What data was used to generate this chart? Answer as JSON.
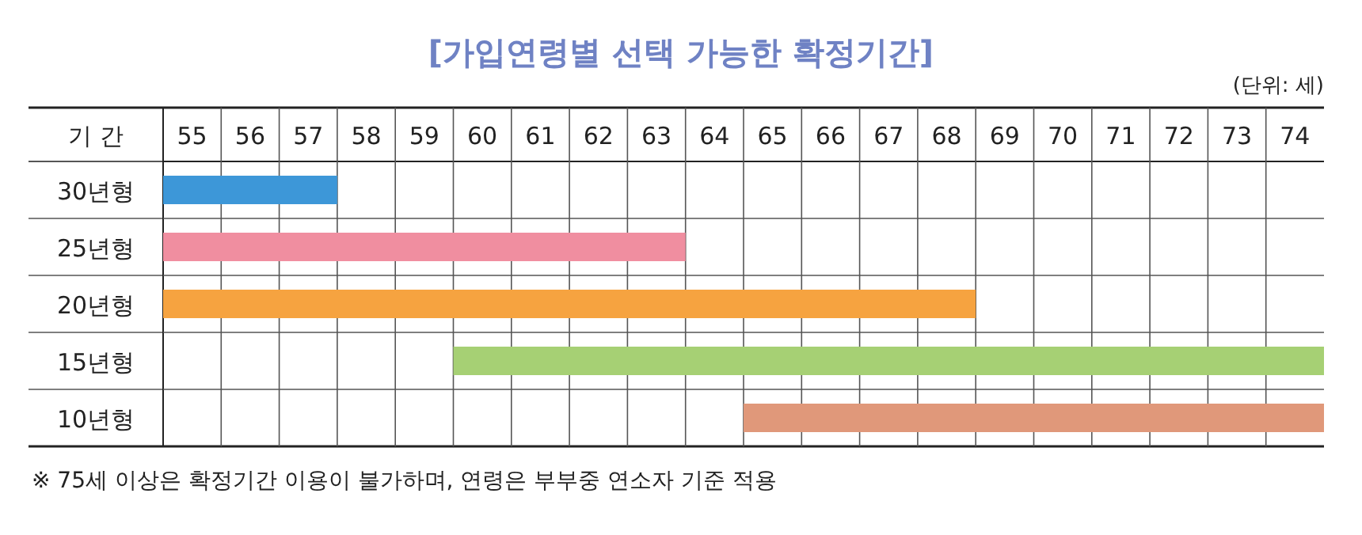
{
  "chart_data": {
    "type": "bar",
    "orientation": "horizontal",
    "title": "[가입연령별 선택 가능한 확정기간]",
    "subtitle": "(단위: 세)",
    "ylabel": "기 간",
    "categories": [
      "30년형",
      "25년형",
      "20년형",
      "15년형",
      "10년형"
    ],
    "base": [
      54.5,
      54.5,
      54.5,
      59.5,
      64.5
    ],
    "values": [
      3,
      9,
      14,
      15,
      10
    ],
    "colors": [
      "#3d97d8",
      "#f08ea0",
      "#f6a340",
      "#a6d074",
      "#e0987a"
    ],
    "xlim": [
      54.5,
      74.5
    ],
    "xticks": [
      55,
      56,
      57,
      58,
      59,
      60,
      61,
      62,
      63,
      64,
      65,
      66,
      67,
      68,
      69,
      70,
      71,
      72,
      73,
      74
    ],
    "grid": true,
    "annotations": [
      "※ 75세 이상은 확정기간 이용이 불가하며, 연령은 부부중 연소자 기준 적용"
    ]
  }
}
